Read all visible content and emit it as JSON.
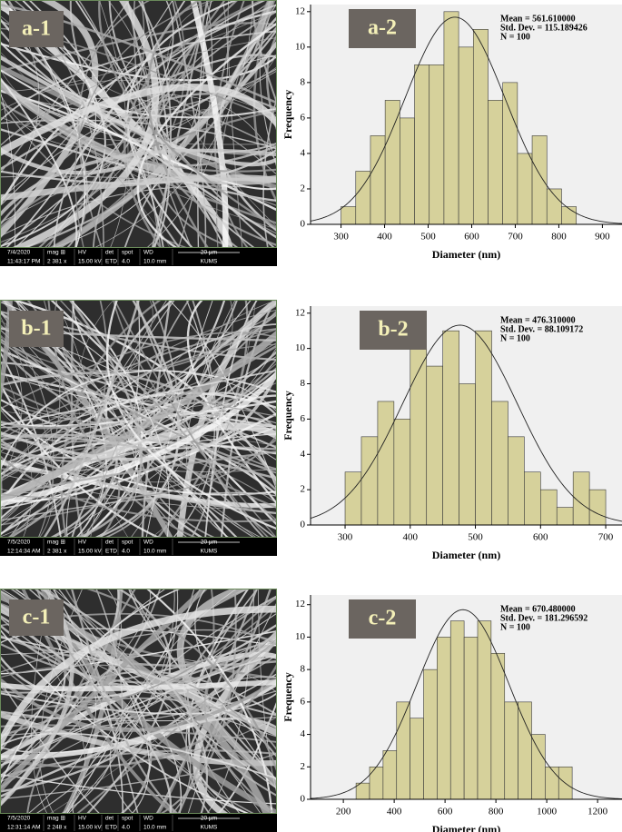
{
  "chart_data": [
    {
      "type": "histogram",
      "label": "a-2",
      "bins": [
        300,
        333.75,
        367.5,
        401.25,
        435,
        468.75,
        502.5,
        536.25,
        570,
        603.75,
        637.5,
        671.25,
        705,
        738.75,
        772.5,
        806.25,
        840
      ],
      "values": [
        1,
        3,
        5,
        7,
        6,
        9,
        9,
        12,
        10,
        11,
        7,
        8,
        4,
        5,
        2,
        1
      ],
      "color": "#d6d19b",
      "xlim": [
        230,
        945
      ],
      "xticks": [
        300,
        400,
        500,
        600,
        700,
        800,
        900
      ],
      "ylim": [
        0,
        12.4
      ],
      "yticks": [
        0,
        2,
        4,
        6,
        8,
        10,
        12
      ],
      "xlabel": "Diameter (nm)",
      "ylabel": "Frequency",
      "stats": [
        "Mean = 561.610000",
        "Std. Dev. = 115.189426",
        "N = 100"
      ],
      "curve": {
        "mean": 561.61,
        "sd": 115.189426,
        "n": 100
      }
    },
    {
      "type": "histogram",
      "label": "b-2",
      "bins": [
        300,
        325,
        350,
        375,
        400,
        425,
        450,
        475,
        500,
        525,
        550,
        575,
        600,
        625,
        650,
        675,
        700
      ],
      "values": [
        3,
        5,
        7,
        6,
        10,
        9,
        11,
        8,
        11,
        7,
        5,
        3,
        2,
        1,
        3,
        2
      ],
      "color": "#d6d19b",
      "xlim": [
        247,
        725
      ],
      "xticks": [
        300,
        400,
        500,
        600,
        700
      ],
      "ylim": [
        0,
        12.4
      ],
      "yticks": [
        0,
        2,
        4,
        6,
        8,
        10,
        12
      ],
      "xlabel": "Diameter (nm)",
      "ylabel": "Frequency",
      "stats": [
        "Mean = 476.310000",
        "Std. Dev. = 88.109172",
        "N = 100"
      ],
      "curve": {
        "mean": 476.31,
        "sd": 88.109172,
        "n": 100
      }
    },
    {
      "type": "histogram",
      "label": "c-2",
      "bins": [
        250,
        303.125,
        356.25,
        409.375,
        462.5,
        515.625,
        568.75,
        621.875,
        675,
        728.125,
        781.25,
        834.375,
        887.5,
        940.625,
        993.75,
        1046.875,
        1100
      ],
      "values": [
        1,
        2,
        3,
        6,
        5,
        8,
        10,
        11,
        10,
        11,
        9,
        6,
        6,
        4,
        2,
        2
      ],
      "color": "#d6d19b",
      "xlim": [
        71,
        1296
      ],
      "xticks": [
        200,
        400,
        600,
        800,
        1000,
        1200
      ],
      "ylim": [
        0,
        12.6
      ],
      "yticks": [
        0,
        2,
        4,
        6,
        8,
        10,
        12
      ],
      "xlabel": "Diameter (nm)",
      "ylabel": "Frequency",
      "stats": [
        "Mean = 670.480000",
        "Std. Dev. = 181.296592",
        "N = 100"
      ],
      "curve": {
        "mean": 670.48,
        "sd": 181.296592,
        "n": 100
      }
    }
  ],
  "images": [
    {
      "label": "a-1",
      "top": [
        "7/4/2020",
        "mag ⊞",
        "HV",
        "det",
        "spot",
        "WD",
        "20 µm"
      ],
      "bottom": [
        "11:43:17 PM",
        "2 381 x",
        "15.00 kV",
        "ETD",
        "4.0",
        "10.0 mm",
        "KUMS"
      ]
    },
    {
      "label": "b-1",
      "top": [
        "7/5/2020",
        "mag ⊞",
        "HV",
        "det",
        "spot",
        "WD",
        "20 µm"
      ],
      "bottom": [
        "12:14:34 AM",
        "2 381 x",
        "15.00 kV",
        "ETD",
        "4.0",
        "10.0 mm",
        "KUMS"
      ]
    },
    {
      "label": "c-1",
      "top": [
        "7/5/2020",
        "mag ⊞",
        "HV",
        "det",
        "spot",
        "WD",
        "20 µm"
      ],
      "bottom": [
        "12:31:14 AM",
        "2 248 x",
        "15.00 kV",
        "ETD",
        "4.0",
        "10.0 mm",
        "KUMS"
      ]
    }
  ]
}
